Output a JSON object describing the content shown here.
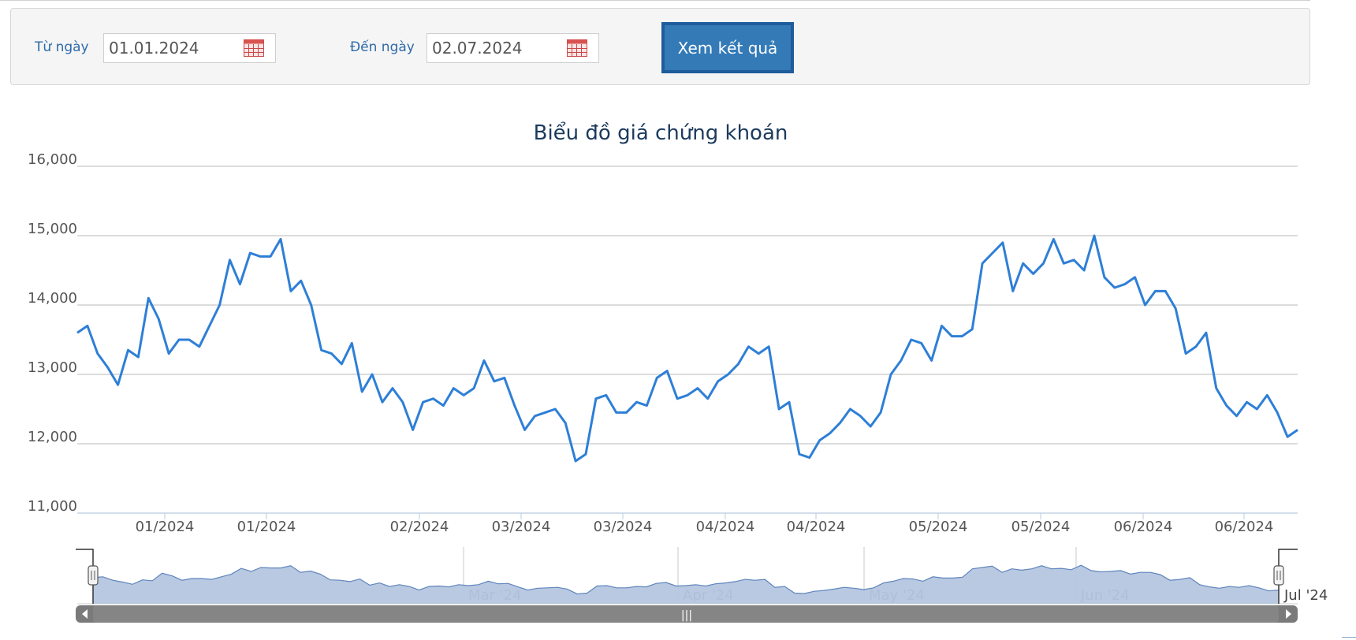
{
  "filter": {
    "from_label": "Từ ngày",
    "from_value": "01.01.2024",
    "to_label": "Đến ngày",
    "to_value": "02.07.2024",
    "submit_label": "Xem kết quả",
    "calendar_icon": "calendar-icon"
  },
  "colors": {
    "line": "#2e7fd6",
    "navigator_fill": "#b5c6df",
    "navigator_stroke": "#5f85bd",
    "scrollbar": "#7a7a7a",
    "grid": "#c8c8c8",
    "button": "#337ab7",
    "label": "#2e6aa8"
  },
  "chart_data": {
    "type": "line",
    "title": "Biểu đồ giá chứng khoán",
    "xlabel": "",
    "ylabel": "",
    "ylim": [
      11000,
      16000
    ],
    "yticks": [
      "11,000",
      "12,000",
      "13,000",
      "14,000",
      "15,000",
      "16,000"
    ],
    "xticks": [
      "01/2024",
      "01/2024",
      "02/2024",
      "03/2024",
      "03/2024",
      "04/2024",
      "04/2024",
      "05/2024",
      "05/2024",
      "06/2024",
      "06/2024"
    ],
    "grid": true,
    "legend": "none",
    "series": [
      {
        "values": [
          13600,
          13700,
          13300,
          13100,
          12850,
          13350,
          13250,
          14100,
          13800,
          13300,
          13500,
          13500,
          13400,
          13700,
          14000,
          14650,
          14300,
          14750,
          14700,
          14700,
          14950,
          14200,
          14350,
          14000,
          13350,
          13300,
          13150,
          13450,
          12750,
          13000,
          12600,
          12800,
          12600,
          12200,
          12600,
          12650,
          12550,
          12800,
          12700,
          12800,
          13200,
          12900,
          12950,
          12550,
          12200,
          12400,
          12450,
          12500,
          12300,
          11750,
          11850,
          12650,
          12700,
          12450,
          12450,
          12600,
          12550,
          12950,
          13050,
          12650,
          12700,
          12800,
          12650,
          12900,
          13000,
          13150,
          13400,
          13300,
          13400,
          12500,
          12600,
          11850,
          11800,
          12050,
          12150,
          12300,
          12500,
          12400,
          12250,
          12450,
          13000,
          13200,
          13500,
          13450,
          13200,
          13700,
          13550,
          13550,
          13650,
          14600,
          14750,
          14900,
          14200,
          14600,
          14450,
          14600,
          14950,
          14600,
          14650,
          14500,
          15000,
          14400,
          14250,
          14300,
          14400,
          14000,
          14200,
          14200,
          13950,
          13300,
          13400,
          13600,
          12800,
          12550,
          12400,
          12600,
          12500,
          12700,
          12450,
          12100,
          12200
        ]
      }
    ],
    "navigator": {
      "labels": [
        "Mar '24",
        "Apr '24",
        "May '24",
        "Jun '24",
        "Jul '24"
      ],
      "scroll_grip": "|||"
    }
  }
}
